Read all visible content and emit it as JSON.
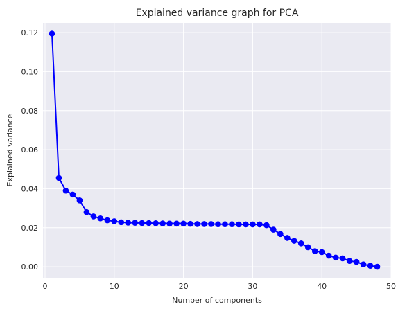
{
  "chart_data": {
    "type": "line",
    "title": "Explained variance graph for PCA",
    "xlabel": "Number of components",
    "ylabel": "Explained variance",
    "xlim": [
      -0.3,
      50
    ],
    "ylim": [
      -0.006,
      0.125
    ],
    "xticks": [
      0,
      10,
      20,
      30,
      40,
      50
    ],
    "yticks": [
      0.0,
      0.02,
      0.04,
      0.06,
      0.08,
      0.1,
      0.12
    ],
    "xtick_labels": [
      "0",
      "10",
      "20",
      "30",
      "40",
      "50"
    ],
    "ytick_labels": [
      "0.00",
      "0.02",
      "0.04",
      "0.06",
      "0.08",
      "0.10",
      "0.12"
    ],
    "grid": true,
    "colors": {
      "background": "#eaeaf2",
      "grid": "#ffffff",
      "series": "#0000ff",
      "text": "#262626"
    },
    "series": [
      {
        "marker": "circle",
        "x": [
          1,
          2,
          3,
          4,
          5,
          6,
          7,
          8,
          9,
          10,
          11,
          12,
          13,
          14,
          15,
          16,
          17,
          18,
          19,
          20,
          21,
          22,
          23,
          24,
          25,
          26,
          27,
          28,
          29,
          30,
          31,
          32,
          33,
          34,
          35,
          36,
          37,
          38,
          39,
          40,
          41,
          42,
          43,
          44,
          45,
          46,
          47,
          48
        ],
        "values": [
          0.1195,
          0.0455,
          0.039,
          0.037,
          0.034,
          0.028,
          0.0258,
          0.0248,
          0.0238,
          0.0233,
          0.0228,
          0.0226,
          0.0225,
          0.0224,
          0.0224,
          0.0223,
          0.0222,
          0.0221,
          0.0221,
          0.0221,
          0.022,
          0.0219,
          0.0219,
          0.0219,
          0.0218,
          0.0218,
          0.0218,
          0.0217,
          0.0217,
          0.0217,
          0.0217,
          0.0213,
          0.019,
          0.0168,
          0.0148,
          0.0133,
          0.012,
          0.01,
          0.008,
          0.0075,
          0.0057,
          0.0047,
          0.0043,
          0.003,
          0.0025,
          0.0012,
          0.0005,
          0.0
        ]
      }
    ]
  }
}
